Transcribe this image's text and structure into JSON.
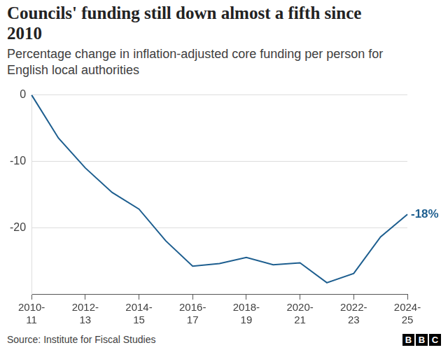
{
  "chart_data": {
    "type": "line",
    "title": "Councils' funding still down almost a fifth since 2010",
    "subtitle": "Percentage change in inflation-adjusted core funding per person for English local authorities",
    "categories": [
      "2010-11",
      null,
      "2012-13",
      null,
      "2014-15",
      null,
      "2016-17",
      null,
      "2018-19",
      null,
      "2020-21",
      null,
      "2022-23",
      null,
      "2024-25"
    ],
    "values": [
      0,
      -6.5,
      -11,
      -14.7,
      -17.2,
      -22,
      -25.8,
      -25.4,
      -24.5,
      -25.6,
      -25.3,
      -28.3,
      -26.9,
      -21.4,
      -18
    ],
    "color": "#1d5e8f",
    "ylim": [
      -30,
      0
    ],
    "yticks": [
      0,
      -10,
      -20
    ],
    "grid": true,
    "annotations": [
      {
        "x": "2024-25",
        "y": -18,
        "text": "-18%"
      }
    ],
    "source": "Source: Institute for Fiscal Studies",
    "logo": "BBC"
  }
}
